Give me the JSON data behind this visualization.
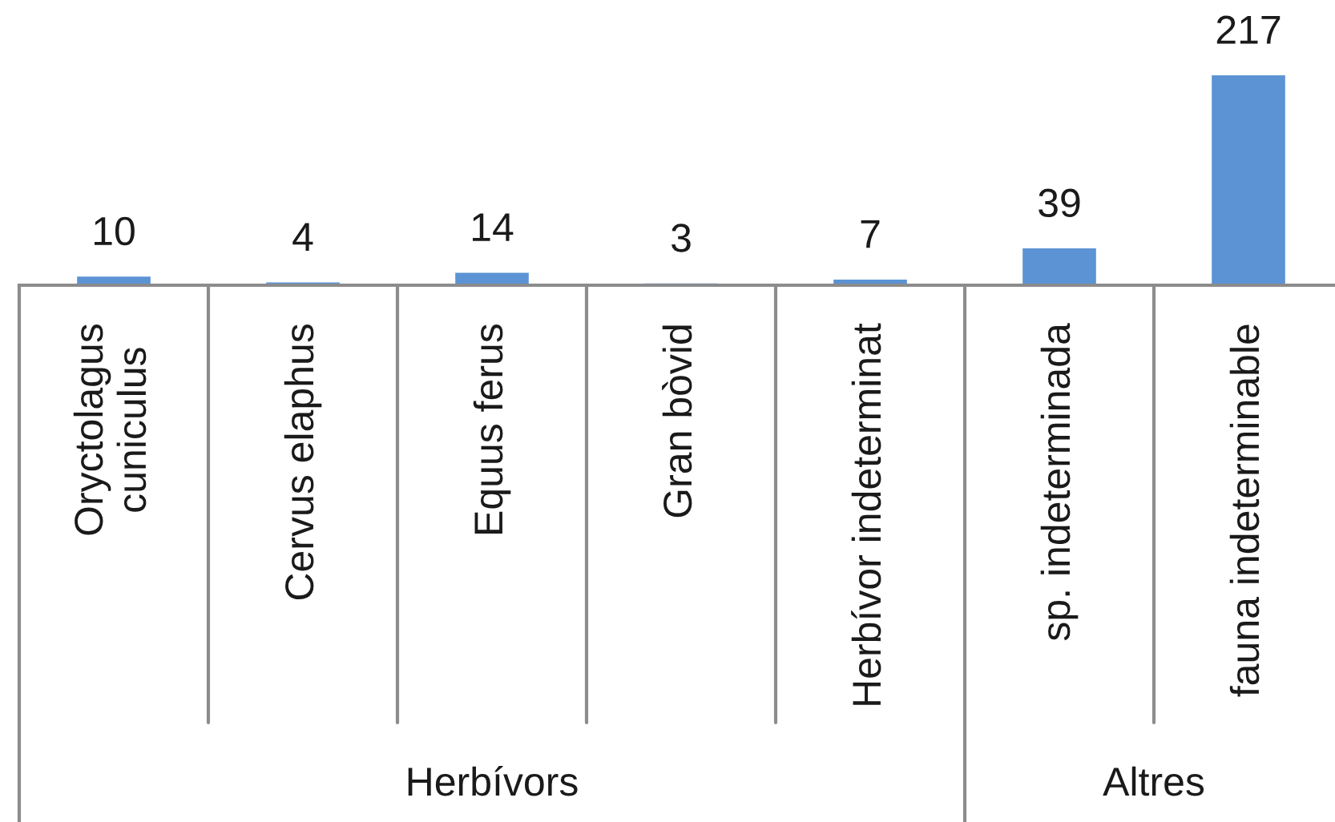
{
  "chart_data": {
    "type": "bar",
    "categories": [
      "Oryctolagus\ncuniculus",
      "Cervus elaphus",
      "Equus ferus",
      "Gran bòvid",
      "Herbívor indeterminat",
      "sp. indeterminada",
      "fauna indeterminable"
    ],
    "values": [
      10,
      4,
      14,
      3,
      7,
      39,
      217
    ],
    "color": "#5b93d4",
    "data_labels": true,
    "annotations": [
      "Herbívors",
      "Altres"
    ]
  }
}
